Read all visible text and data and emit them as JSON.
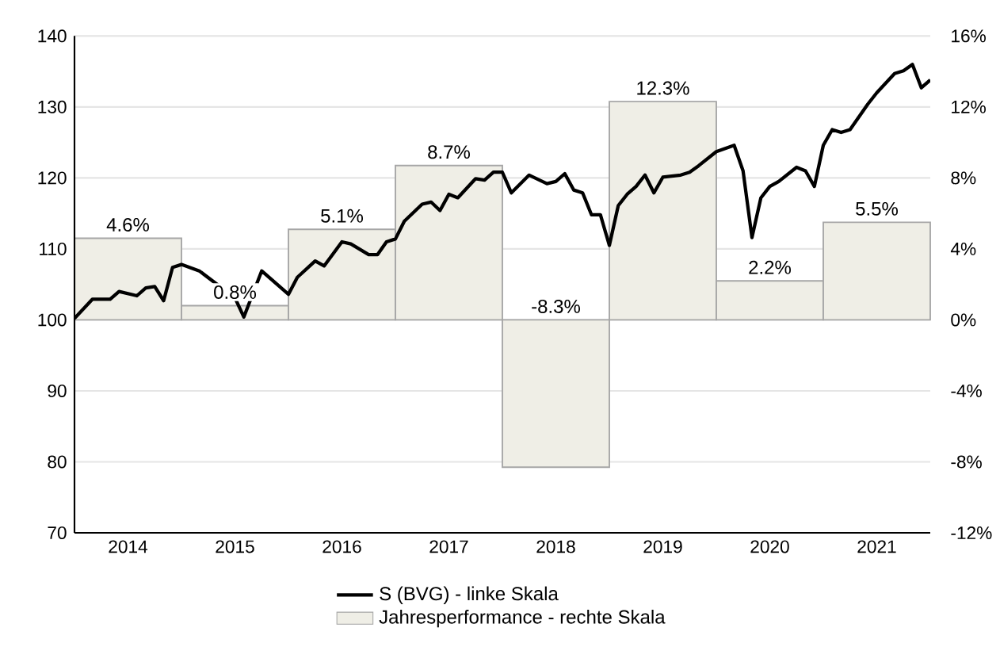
{
  "chart_data": {
    "type": "line",
    "xlim": [
      "2014-01",
      "2022-01"
    ],
    "xticks": [
      {
        "value": "2014-07",
        "label": "2014"
      },
      {
        "value": "2015-07",
        "label": "2015"
      },
      {
        "value": "2016-07",
        "label": "2016"
      },
      {
        "value": "2017-07",
        "label": "2017"
      },
      {
        "value": "2018-07",
        "label": "2018"
      },
      {
        "value": "2019-07",
        "label": "2019"
      },
      {
        "value": "2020-07",
        "label": "2020"
      },
      {
        "value": "2021-07",
        "label": "2021"
      }
    ],
    "ylim": [
      70,
      140
    ],
    "yticks": [
      70,
      80,
      90,
      100,
      110,
      120,
      130,
      140
    ],
    "y2lim": [
      -12,
      16
    ],
    "y2ticks": [
      {
        "value": -12,
        "label": "-12%"
      },
      {
        "value": -8,
        "label": "-8%"
      },
      {
        "value": -4,
        "label": "-4%"
      },
      {
        "value": 0,
        "label": "0%"
      },
      {
        "value": 4,
        "label": "4%"
      },
      {
        "value": 8,
        "label": "8%"
      },
      {
        "value": 12,
        "label": "12%"
      },
      {
        "value": 16,
        "label": "16%"
      }
    ],
    "grid": "y",
    "legend": "bottom",
    "series": [
      {
        "type": "bar",
        "axis": "y2",
        "name": "Jahresperformance - rechte Skala",
        "color": "#efeee6",
        "x": [
          "2014-07",
          "2015-07",
          "2016-07",
          "2017-07",
          "2018-07",
          "2019-07",
          "2020-07",
          "2021-07"
        ],
        "values": [
          4.6,
          0.8,
          5.1,
          8.7,
          -8.3,
          12.3,
          2.2,
          5.5
        ],
        "value_labels": [
          "4.6%",
          "0.8%",
          "5.1%",
          "8.7%",
          "-8.3%",
          "12.3%",
          "2.2%",
          "5.5%"
        ]
      },
      {
        "name": "S (BVG) - linke Skala",
        "color": "#000000",
        "x": [
          "2014-01",
          "2014-03",
          "2014-05",
          "2014-06",
          "2014-08",
          "2014-09",
          "2014-10",
          "2014-11",
          "2014-12",
          "2015-01",
          "2015-03",
          "2015-07",
          "2015-08",
          "2015-10",
          "2016-01",
          "2016-02",
          "2016-04",
          "2016-05",
          "2016-07",
          "2016-08",
          "2016-10",
          "2016-11",
          "2016-12",
          "2017-01",
          "2017-02",
          "2017-04",
          "2017-05",
          "2017-06",
          "2017-07",
          "2017-08",
          "2017-10",
          "2017-11",
          "2017-12",
          "2018-01",
          "2018-02",
          "2018-04",
          "2018-06",
          "2018-07",
          "2018-08",
          "2018-09",
          "2018-10",
          "2018-11",
          "2018-12",
          "2019-01",
          "2019-02",
          "2019-03",
          "2019-04",
          "2019-05",
          "2019-06",
          "2019-07",
          "2019-09",
          "2019-10",
          "2019-11",
          "2020-01",
          "2020-03",
          "2020-04",
          "2020-05",
          "2020-06",
          "2020-07",
          "2020-08",
          "2020-10",
          "2020-11",
          "2020-12",
          "2021-01",
          "2021-02",
          "2021-03",
          "2021-04",
          "2021-06",
          "2021-07",
          "2021-09",
          "2021-10",
          "2021-11",
          "2021-12",
          "2022-01"
        ],
        "values": [
          100.2,
          102.9,
          102.9,
          104.0,
          103.4,
          104.5,
          104.7,
          102.7,
          107.4,
          107.8,
          106.9,
          103.1,
          100.4,
          106.9,
          103.6,
          106.0,
          108.3,
          107.6,
          111.0,
          110.7,
          109.2,
          109.2,
          111.0,
          111.4,
          113.9,
          116.3,
          116.6,
          115.4,
          117.7,
          117.2,
          119.9,
          119.7,
          120.8,
          120.8,
          117.9,
          120.4,
          119.2,
          119.5,
          120.6,
          118.3,
          117.9,
          114.8,
          114.8,
          110.5,
          116.1,
          117.7,
          118.8,
          120.4,
          117.9,
          120.1,
          120.4,
          120.8,
          121.7,
          123.7,
          124.6,
          121.0,
          111.6,
          117.2,
          118.8,
          119.5,
          121.5,
          121.0,
          118.8,
          124.6,
          126.8,
          126.4,
          126.8,
          130.4,
          132.0,
          134.7,
          135.1,
          136.0,
          132.7,
          133.8
        ]
      }
    ]
  }
}
